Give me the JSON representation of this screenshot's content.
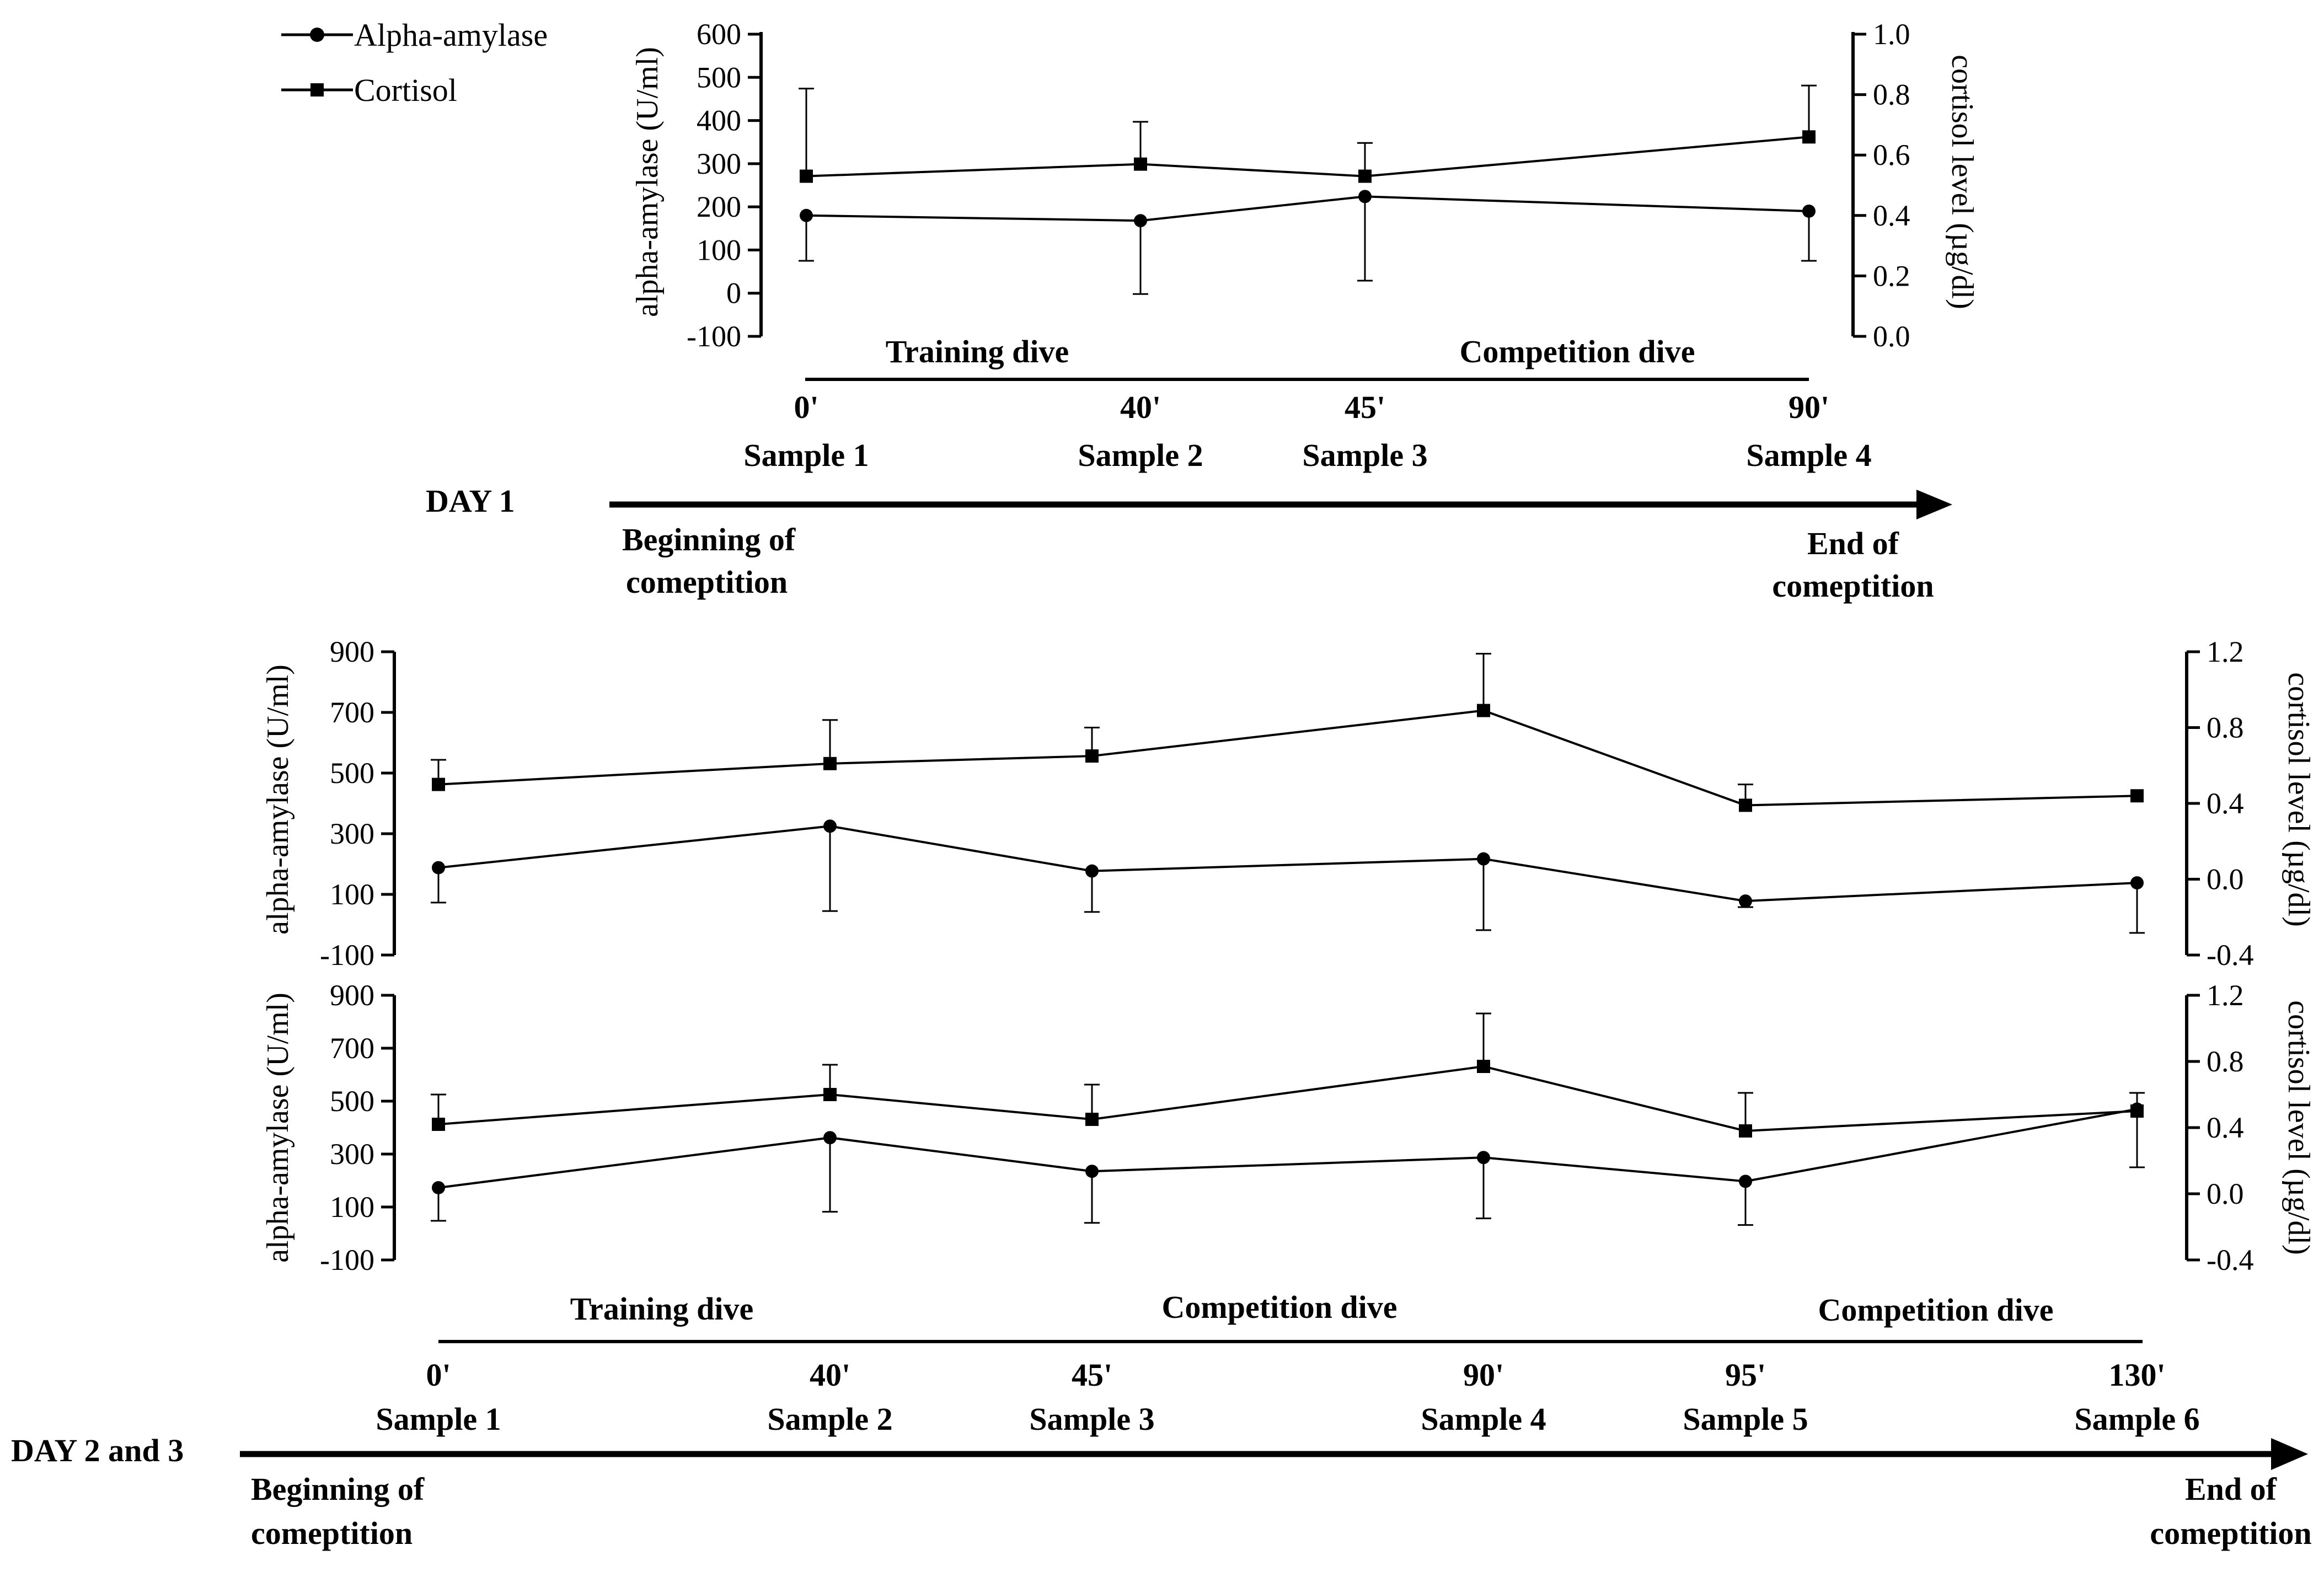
{
  "legend": {
    "alpha_label": "Alpha-amylase",
    "cortisol_label": "Cortisol"
  },
  "chart_data": [
    {
      "type": "line",
      "id": "day1",
      "title": "",
      "xlabel": "",
      "ylabel_left": "alpha-amylase (U/ml)",
      "ylabel_right": "cortisol level (µg/dl)",
      "ylim_left": [
        -100,
        600
      ],
      "ylim_right": [
        0,
        1.0
      ],
      "yticks_left": [
        "600",
        "500",
        "400",
        "300",
        "200",
        "100",
        "0",
        "-100"
      ],
      "yticks_right": [
        "1.0",
        "0.8",
        "0.6",
        "0.4",
        "0.2",
        "0.0"
      ],
      "x_minutes": [
        0,
        40,
        45,
        90
      ],
      "series": [
        {
          "name": "Alpha-amylase",
          "axis": "left",
          "marker": "circle",
          "values": [
            180,
            168,
            224,
            190
          ],
          "err_lo": [
            105,
            170,
            195,
            115
          ],
          "err_hi": [
            0,
            0,
            0,
            0
          ]
        },
        {
          "name": "Cortisol",
          "axis": "right",
          "marker": "square",
          "values": [
            0.53,
            0.57,
            0.53,
            0.66
          ],
          "err_lo": [
            0,
            0,
            0,
            0
          ],
          "err_hi": [
            0.29,
            0.14,
            0.11,
            0.17
          ]
        }
      ],
      "phases": [
        "Training dive",
        "Competition dive"
      ],
      "time_labels": [
        "0'",
        "40'",
        "45'",
        "90'"
      ],
      "sample_labels": [
        "Sample 1",
        "Sample 2",
        "Sample 3",
        "Sample 4"
      ],
      "day_label": "DAY 1",
      "start_lines": [
        "Beginning of",
        "comeptition"
      ],
      "end_lines": [
        "End of",
        "comeptition"
      ]
    },
    {
      "type": "line",
      "id": "day2",
      "title": "",
      "xlabel": "",
      "ylabel_left": "alpha-amylase (U/ml)",
      "ylabel_right": "cortisol level (µg/dl)",
      "ylim_left": [
        -100,
        900
      ],
      "ylim_right": [
        -0.4,
        1.2
      ],
      "yticks_left": [
        "900",
        "700",
        "500",
        "300",
        "100",
        "-100"
      ],
      "yticks_right": [
        "1.2",
        "0.8",
        "0.4",
        "0.0",
        "-0.4"
      ],
      "x_minutes": [
        0,
        40,
        45,
        90,
        95,
        130
      ],
      "series": [
        {
          "name": "Alpha-amylase",
          "axis": "left",
          "marker": "circle",
          "values": [
            188,
            325,
            177,
            217,
            78,
            138
          ],
          "err_lo": [
            115,
            280,
            135,
            235,
            20,
            165
          ],
          "err_hi": [
            0,
            0,
            0,
            0,
            0,
            0
          ]
        },
        {
          "name": "Cortisol",
          "axis": "right",
          "marker": "square",
          "values": [
            0.5,
            0.61,
            0.65,
            0.89,
            0.39,
            0.44
          ],
          "err_lo": [
            0,
            0,
            0,
            0,
            0,
            0
          ],
          "err_hi": [
            0.13,
            0.23,
            0.15,
            0.3,
            0.11,
            0
          ]
        }
      ]
    },
    {
      "type": "line",
      "id": "day3",
      "title": "",
      "xlabel": "",
      "ylabel_left": "alpha-amylase (U/ml)",
      "ylabel_right": "cortisol level (µg/dl)",
      "ylim_left": [
        -100,
        900
      ],
      "ylim_right": [
        -0.4,
        1.2
      ],
      "yticks_left": [
        "900",
        "700",
        "500",
        "300",
        "100",
        "-100"
      ],
      "yticks_right": [
        "1.2",
        "0.8",
        "0.4",
        "0.0",
        "-0.4"
      ],
      "x_minutes": [
        0,
        40,
        45,
        90,
        95,
        130
      ],
      "series": [
        {
          "name": "Alpha-amylase",
          "axis": "left",
          "marker": "circle",
          "values": [
            173,
            362,
            235,
            287,
            197,
            470
          ],
          "err_lo": [
            125,
            280,
            195,
            230,
            165,
            220
          ],
          "err_hi": [
            0,
            0,
            0,
            0,
            0,
            0
          ]
        },
        {
          "name": "Cortisol",
          "axis": "right",
          "marker": "square",
          "values": [
            0.42,
            0.6,
            0.45,
            0.77,
            0.38,
            0.5
          ],
          "err_lo": [
            0,
            0,
            0,
            0,
            0,
            0
          ],
          "err_hi": [
            0.18,
            0.18,
            0.21,
            0.32,
            0.23,
            0.11
          ]
        }
      ],
      "phases": [
        "Training dive",
        "Competition dive",
        "Competition dive"
      ],
      "time_labels": [
        "0'",
        "40'",
        "45'",
        "90'",
        "95'",
        "130'"
      ],
      "sample_labels": [
        "Sample 1",
        "Sample 2",
        "Sample 3",
        "Sample 4",
        "Sample 5",
        "Sample 6"
      ],
      "day_label": "DAY 2 and 3",
      "start_lines": [
        "Beginning of",
        "comeptition"
      ],
      "end_lines": [
        "End of",
        "comeptition"
      ]
    }
  ]
}
